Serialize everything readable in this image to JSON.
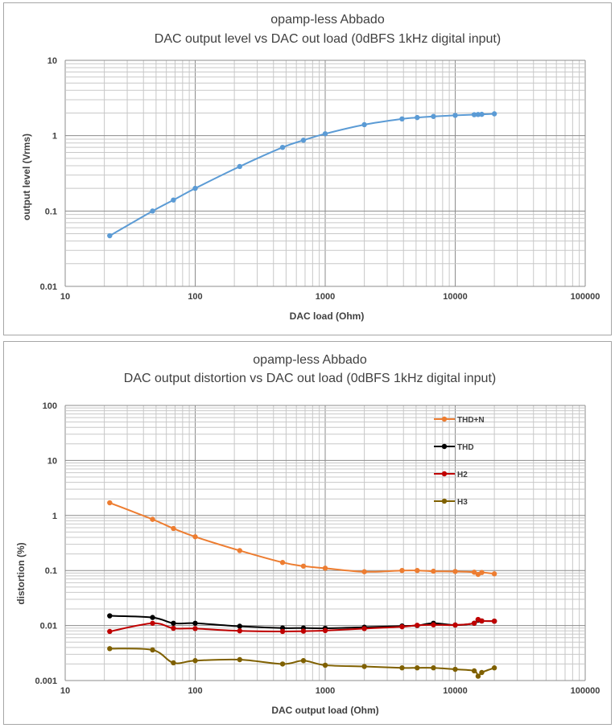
{
  "chart_data": [
    {
      "type": "line",
      "title_line1": "opamp-less Abbado",
      "title_line2": "DAC output level vs DAC out load (0dBFS 1kHz digital input)",
      "xlabel": "DAC load (Ohm)",
      "ylabel": "output level (Vrms)",
      "x_scale": "log",
      "y_scale": "log",
      "xlim": [
        10,
        100000
      ],
      "ylim": [
        0.01,
        10
      ],
      "x_ticks": [
        "10",
        "100",
        "1000",
        "10000",
        "100000"
      ],
      "y_ticks": [
        "0.01",
        "0.1",
        "1",
        "10"
      ],
      "grid": true,
      "series": [
        {
          "color": "#5b9bd5",
          "x": [
            22,
            47,
            68,
            100,
            220,
            470,
            680,
            1000,
            2000,
            3900,
            5100,
            6800,
            10000,
            14000,
            15000,
            16000,
            20000
          ],
          "y": [
            0.047,
            0.1,
            0.14,
            0.2,
            0.39,
            0.7,
            0.87,
            1.06,
            1.4,
            1.67,
            1.74,
            1.8,
            1.86,
            1.9,
            1.91,
            1.92,
            1.95
          ]
        }
      ]
    },
    {
      "type": "line",
      "title_line1": "opamp-less Abbado",
      "title_line2": "DAC output distortion vs DAC out load (0dBFS 1kHz digital input)",
      "xlabel": "DAC output load (Ohm)",
      "ylabel": "distortion (%)",
      "x_scale": "log",
      "y_scale": "log",
      "xlim": [
        10,
        100000
      ],
      "ylim": [
        0.001,
        100
      ],
      "x_ticks": [
        "10",
        "100",
        "1000",
        "10000",
        "100000"
      ],
      "y_ticks": [
        "0.001",
        "0.01",
        "0.1",
        "1",
        "10",
        "100"
      ],
      "grid": true,
      "legend": "top-right",
      "series": [
        {
          "name": "THD+N",
          "color": "#ed7d31",
          "x": [
            22,
            47,
            68,
            100,
            220,
            470,
            680,
            1000,
            2000,
            3900,
            5100,
            6800,
            10000,
            14000,
            15000,
            16000,
            20000
          ],
          "y": [
            1.7,
            0.85,
            0.58,
            0.41,
            0.23,
            0.14,
            0.12,
            0.11,
            0.095,
            0.1,
            0.1,
            0.097,
            0.096,
            0.093,
            0.085,
            0.092,
            0.087
          ]
        },
        {
          "name": "THD",
          "color": "#000000",
          "x": [
            22,
            47,
            68,
            100,
            220,
            470,
            680,
            1000,
            2000,
            3900,
            5100,
            6800,
            10000,
            14000,
            15000,
            16000,
            20000
          ],
          "y": [
            0.015,
            0.014,
            0.011,
            0.011,
            0.0097,
            0.009,
            0.009,
            0.0089,
            0.0093,
            0.0098,
            0.01,
            0.011,
            0.0102,
            0.011,
            0.0125,
            0.0121,
            0.012
          ]
        },
        {
          "name": "H2",
          "color": "#c00000",
          "x": [
            22,
            47,
            68,
            100,
            220,
            470,
            680,
            1000,
            2000,
            3900,
            5100,
            6800,
            10000,
            14000,
            15000,
            16000,
            20000
          ],
          "y": [
            0.0078,
            0.011,
            0.0089,
            0.0088,
            0.008,
            0.0078,
            0.0079,
            0.0081,
            0.0088,
            0.0095,
            0.0101,
            0.0103,
            0.0102,
            0.011,
            0.0129,
            0.0121,
            0.012
          ]
        },
        {
          "name": "H3",
          "color": "#7f6000",
          "x": [
            22,
            47,
            68,
            100,
            220,
            470,
            680,
            1000,
            2000,
            3900,
            5100,
            6800,
            10000,
            14000,
            15000,
            16000,
            20000
          ],
          "y": [
            0.0038,
            0.0036,
            0.0021,
            0.0023,
            0.0024,
            0.002,
            0.0023,
            0.0019,
            0.0018,
            0.0017,
            0.0017,
            0.0017,
            0.0016,
            0.0015,
            0.0012,
            0.0014,
            0.0017
          ]
        }
      ]
    }
  ]
}
